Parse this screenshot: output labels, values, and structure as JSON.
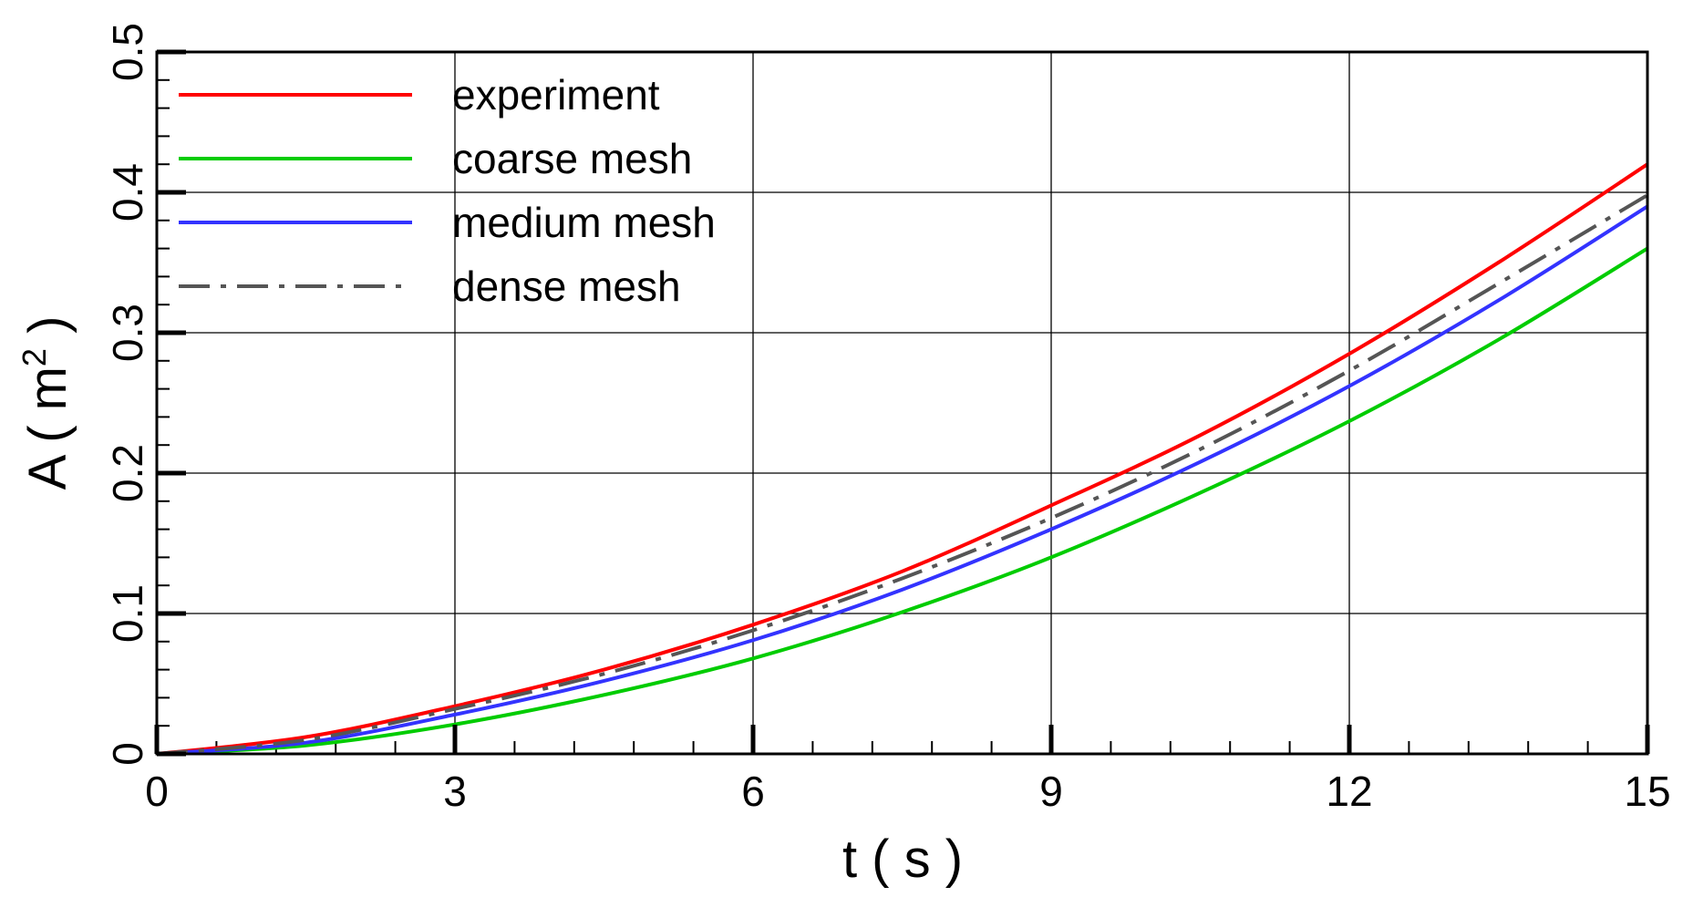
{
  "chart_data": {
    "type": "line",
    "xlabel": "t ( s )",
    "ylabel": "A ( m",
    "ylabel_sup": "2",
    "ylabel_close": " )",
    "xlim": [
      0,
      15
    ],
    "ylim": [
      0,
      0.5
    ],
    "x_ticks": [
      "0",
      "3",
      "6",
      "9",
      "12",
      "15"
    ],
    "y_ticks": [
      "0",
      "0.1",
      "0.2",
      "0.3",
      "0.4",
      "0.5"
    ],
    "grid": true,
    "legend_position": "top-left",
    "x": [
      0,
      1.5,
      3,
      4.5,
      6,
      7.5,
      9,
      10.5,
      12,
      13.5,
      15
    ],
    "series": [
      {
        "name": "experiment",
        "color": "#ff0000",
        "dash": "solid",
        "values": [
          0,
          0.012,
          0.034,
          0.06,
          0.092,
          0.13,
          0.177,
          0.227,
          0.285,
          0.35,
          0.42
        ]
      },
      {
        "name": "coarse mesh",
        "color": "#00cc00",
        "dash": "solid",
        "values": [
          0,
          0.006,
          0.021,
          0.042,
          0.068,
          0.101,
          0.14,
          0.186,
          0.237,
          0.295,
          0.36
        ]
      },
      {
        "name": "medium mesh",
        "color": "#3333ff",
        "dash": "solid",
        "values": [
          0,
          0.008,
          0.028,
          0.052,
          0.081,
          0.117,
          0.16,
          0.208,
          0.262,
          0.323,
          0.39
        ]
      },
      {
        "name": "dense mesh",
        "color": "#555555",
        "dash": "dashdot",
        "values": [
          0,
          0.01,
          0.032,
          0.057,
          0.088,
          0.125,
          0.168,
          0.217,
          0.273,
          0.335,
          0.398
        ]
      }
    ]
  }
}
